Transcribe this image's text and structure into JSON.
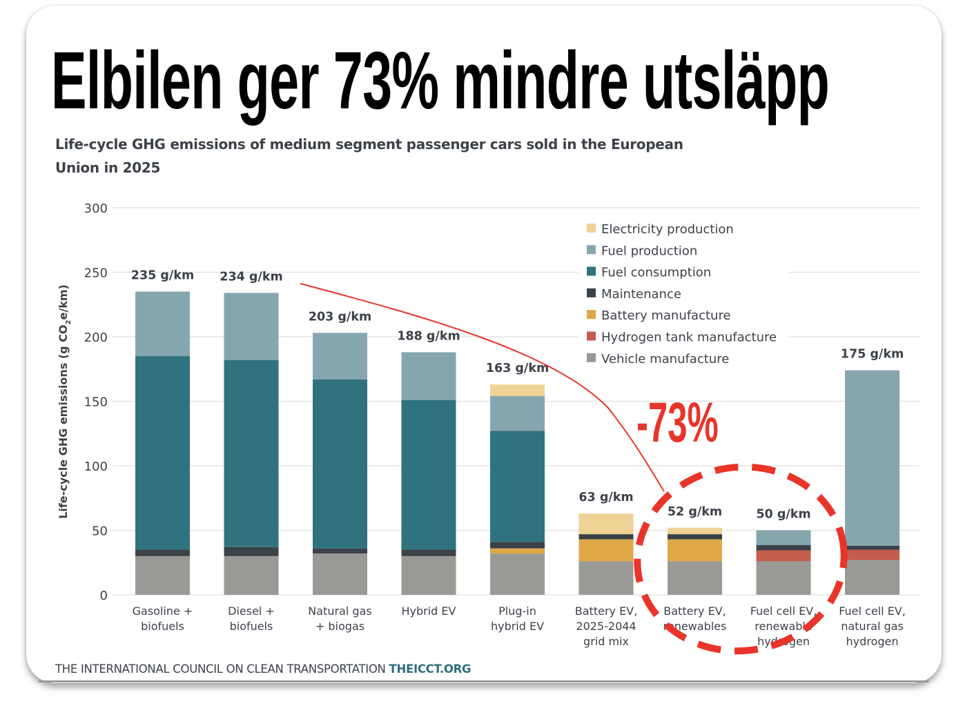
{
  "headline": "Elbilen ger 73% mindre utsläpp",
  "annotation": "-73%",
  "footer": {
    "org": "THE INTERNATIONAL COUNCIL ON CLEAN TRANSPORTATION",
    "site": "THEICCT.ORG"
  },
  "chart_data": {
    "type": "bar",
    "stacked": true,
    "title": "Life-cycle GHG emissions of medium segment passenger cars sold in the European Union in 2025",
    "xlabel": "",
    "ylabel": "Life-cycle GHG emissions (g CO2e/km)",
    "ylabel_parts": {
      "pre": "Life-cycle GHG emissions (g CO",
      "sub": "2",
      "post": "e/km)"
    },
    "ylim": [
      0,
      300
    ],
    "yticks": [
      0,
      50,
      100,
      150,
      200,
      250,
      300
    ],
    "grid": true,
    "legend_position": "top-right",
    "categories": [
      [
        "Gasoline +",
        "biofuels"
      ],
      [
        "Diesel +",
        "biofuels"
      ],
      [
        "Natural gas",
        "+ biogas"
      ],
      [
        "Hybrid EV"
      ],
      [
        "Plug-in",
        "hybrid EV"
      ],
      [
        "Battery EV,",
        "2025-2044",
        "grid mix"
      ],
      [
        "Battery EV,",
        "renewables"
      ],
      [
        "Fuel cell EV,",
        "renewable",
        "hydrogen"
      ],
      [
        "Fuel cell EV,",
        "natural gas",
        "hydrogen"
      ]
    ],
    "totals": [
      "235 g/km",
      "234 g/km",
      "203 g/km",
      "188 g/km",
      "163 g/km",
      "63 g/km",
      "52 g/km",
      "50 g/km",
      "175 g/km"
    ],
    "series": [
      {
        "name": "Vehicle manufacture",
        "color": "#999996",
        "values": [
          30,
          30,
          32,
          30,
          32,
          26,
          26,
          26,
          27
        ]
      },
      {
        "name": "Hydrogen tank manufacture",
        "color": "#c45e4c",
        "values": [
          0,
          0,
          0,
          0,
          0,
          0,
          0,
          8.5,
          8
        ]
      },
      {
        "name": "Battery manufacture",
        "color": "#dfa847",
        "values": [
          0,
          0,
          0,
          0,
          4,
          17,
          17,
          0,
          0
        ]
      },
      {
        "name": "Maintenance",
        "color": "#3b4248",
        "values": [
          5,
          7,
          4,
          5,
          5,
          4,
          4,
          4,
          3
        ]
      },
      {
        "name": "Fuel consumption",
        "color": "#30727e",
        "values": [
          150,
          145,
          131,
          116,
          86,
          0,
          0,
          0,
          0
        ]
      },
      {
        "name": "Fuel production",
        "color": "#86a6af",
        "values": [
          50,
          52,
          36,
          37,
          27,
          0,
          0,
          11.5,
          136
        ]
      },
      {
        "name": "Electricity production",
        "color": "#efd295",
        "values": [
          0,
          0,
          0,
          0,
          9,
          16,
          5,
          0,
          0
        ]
      }
    ],
    "legend_order": [
      "Electricity production",
      "Fuel production",
      "Fuel consumption",
      "Maintenance",
      "Battery manufacture",
      "Hydrogen tank manufacture",
      "Vehicle manufacture"
    ]
  }
}
